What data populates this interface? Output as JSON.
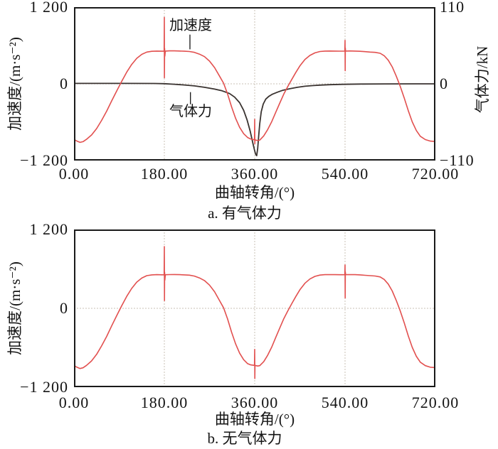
{
  "figure": {
    "colors": {
      "red": "#e2504f",
      "dark": "#3a3330",
      "grid": "#c9c2b6",
      "axis": "#1a1a1a",
      "text": "#141414",
      "background": "#ffffff"
    }
  },
  "chart_data": [
    {
      "id": "with-gas-force",
      "type": "line",
      "caption": "a. 有气体力",
      "xlabel": "曲轴转角/(°)",
      "ylabel_left": "加速度/(m·s⁻²)",
      "ylabel_right": "气体力/kN",
      "xlim": [
        0,
        720
      ],
      "xticks": [
        "0.00",
        "180.00",
        "360.00",
        "540.00",
        "720.00"
      ],
      "xtick_values": [
        0,
        180,
        360,
        540,
        720
      ],
      "ylim_left": [
        -1200,
        1200
      ],
      "yticks_left": [
        "1 200",
        "0",
        "−1 200"
      ],
      "ytick_values_left": [
        1200,
        0,
        -1200
      ],
      "ylim_right": [
        -110,
        110
      ],
      "yticks_right": [
        "110",
        "0",
        "−110"
      ],
      "ytick_values_right": [
        110,
        0,
        -110
      ],
      "grid_x": [
        180,
        360,
        540
      ],
      "grid_y": [
        0
      ],
      "annotations": [
        {
          "key": "acceleration-label",
          "label": "加速度",
          "leader": [
            [
              231,
              770
            ],
            [
              231,
              540
            ]
          ]
        },
        {
          "key": "gas-force-label",
          "label": "气体力",
          "leader": [
            [
              232,
              -130
            ],
            [
              232,
              -320
            ]
          ]
        }
      ],
      "series": [
        {
          "key": "gas-force",
          "name": "气体力",
          "axis": "right",
          "unit": "kN",
          "color": "dark",
          "width": 1.8,
          "points": [
            [
              0,
              0.6
            ],
            [
              100,
              0.6
            ],
            [
              160,
              0.5
            ],
            [
              180,
              0.2
            ],
            [
              200,
              -0.6
            ],
            [
              220,
              -1.6
            ],
            [
              240,
              -3
            ],
            [
              260,
              -5
            ],
            [
              280,
              -7.5
            ],
            [
              295,
              -10
            ],
            [
              310,
              -14
            ],
            [
              320,
              -19
            ],
            [
              330,
              -27
            ],
            [
              338,
              -38
            ],
            [
              345,
              -52
            ],
            [
              351,
              -68
            ],
            [
              356,
              -84
            ],
            [
              360,
              -96
            ],
            [
              362,
              -101
            ],
            [
              364,
              -103
            ],
            [
              366,
              -93
            ],
            [
              368,
              -75
            ],
            [
              370,
              -57
            ],
            [
              373,
              -40
            ],
            [
              377,
              -29
            ],
            [
              382,
              -22
            ],
            [
              388,
              -18
            ],
            [
              395,
              -15
            ],
            [
              405,
              -12
            ],
            [
              415,
              -9.5
            ],
            [
              430,
              -7
            ],
            [
              445,
              -5
            ],
            [
              460,
              -3.5
            ],
            [
              475,
              -2.5
            ],
            [
              490,
              -1.8
            ],
            [
              510,
              -1.2
            ],
            [
              535,
              -0.7
            ],
            [
              570,
              -0.3
            ],
            [
              620,
              -0.1
            ],
            [
              680,
              0
            ],
            [
              720,
              0
            ]
          ]
        },
        {
          "key": "acceleration",
          "name": "加速度",
          "axis": "left",
          "unit": "m·s⁻²",
          "color": "red",
          "width": 1.6,
          "points": [
            [
              0,
              -870
            ],
            [
              6,
              -896
            ],
            [
              12,
              -916
            ],
            [
              18,
              -905
            ],
            [
              25,
              -868
            ],
            [
              35,
              -800
            ],
            [
              45,
              -700
            ],
            [
              55,
              -572
            ],
            [
              65,
              -428
            ],
            [
              75,
              -268
            ],
            [
              85,
              -112
            ],
            [
              95,
              38
            ],
            [
              105,
              182
            ],
            [
              115,
              303
            ],
            [
              125,
              399
            ],
            [
              135,
              461
            ],
            [
              145,
              497
            ],
            [
              155,
              509
            ],
            [
              165,
              512
            ],
            [
              175,
              510
            ],
            [
              179.6,
              511
            ],
            [
              180,
              1040
            ],
            [
              180.2,
              95
            ],
            [
              180.5,
              552
            ],
            [
              181,
              432
            ],
            [
              182,
              512
            ],
            [
              190,
              515
            ],
            [
              200,
              516
            ],
            [
              210,
              513
            ],
            [
              220,
              510
            ],
            [
              230,
              506
            ],
            [
              240,
              492
            ],
            [
              250,
              465
            ],
            [
              260,
              425
            ],
            [
              270,
              355
            ],
            [
              280,
              255
            ],
            [
              290,
              120
            ],
            [
              298,
              10
            ],
            [
              306,
              -160
            ],
            [
              314,
              -360
            ],
            [
              322,
              -540
            ],
            [
              330,
              -680
            ],
            [
              338,
              -780
            ],
            [
              346,
              -840
            ],
            [
              352,
              -862
            ],
            [
              359.6,
              -875
            ],
            [
              360,
              -555
            ],
            [
              360.3,
              -938
            ],
            [
              360.6,
              -875
            ],
            [
              366,
              -888
            ],
            [
              370,
              -880
            ],
            [
              378,
              -815
            ],
            [
              386,
              -715
            ],
            [
              394,
              -590
            ],
            [
              402,
              -445
            ],
            [
              410,
              -300
            ],
            [
              418,
              -160
            ],
            [
              426,
              -40
            ],
            [
              434,
              70
            ],
            [
              442,
              180
            ],
            [
              450,
              280
            ],
            [
              460,
              380
            ],
            [
              470,
              445
            ],
            [
              480,
              485
            ],
            [
              490,
              505
            ],
            [
              500,
              512
            ],
            [
              510,
              513
            ],
            [
              520,
              512
            ],
            [
              530,
              511
            ],
            [
              539.6,
              512
            ],
            [
              540,
              680
            ],
            [
              540.3,
              205
            ],
            [
              540.6,
              558
            ],
            [
              541,
              512
            ],
            [
              550,
              514
            ],
            [
              560,
              512
            ],
            [
              570,
              509
            ],
            [
              580,
              503
            ],
            [
              590,
              497
            ],
            [
              600,
              492
            ],
            [
              610,
              478
            ],
            [
              618,
              440
            ],
            [
              626,
              370
            ],
            [
              634,
              265
            ],
            [
              642,
              120
            ],
            [
              650,
              -40
            ],
            [
              658,
              -225
            ],
            [
              666,
              -420
            ],
            [
              674,
              -595
            ],
            [
              682,
              -730
            ],
            [
              690,
              -820
            ],
            [
              700,
              -872
            ],
            [
              710,
              -896
            ],
            [
              720,
              -902
            ]
          ]
        }
      ]
    },
    {
      "id": "without-gas-force",
      "type": "line",
      "caption": "b. 无气体力",
      "xlabel": "曲轴转角/(°)",
      "ylabel_left": "加速度/(m·s⁻²)",
      "xlim": [
        0,
        720
      ],
      "xticks": [
        "0.00",
        "180.00",
        "360.00",
        "540.00",
        "720.00"
      ],
      "xtick_values": [
        0,
        180,
        360,
        540,
        720
      ],
      "ylim_left": [
        -1200,
        1200
      ],
      "yticks_left": [
        "1 200",
        "0",
        "−1 200"
      ],
      "ytick_values_left": [
        1200,
        0,
        -1200
      ],
      "grid_x": [
        180,
        360,
        540
      ],
      "grid_y": [
        0
      ],
      "annotations": [],
      "series": [
        {
          "key": "acceleration",
          "name": "加速度",
          "axis": "left",
          "unit": "m·s⁻²",
          "color": "red",
          "width": 1.6,
          "points": [
            [
              0,
              -870
            ],
            [
              6,
              -896
            ],
            [
              12,
              -916
            ],
            [
              18,
              -905
            ],
            [
              25,
              -868
            ],
            [
              35,
              -800
            ],
            [
              45,
              -700
            ],
            [
              55,
              -572
            ],
            [
              65,
              -428
            ],
            [
              75,
              -268
            ],
            [
              85,
              -112
            ],
            [
              95,
              38
            ],
            [
              105,
              182
            ],
            [
              115,
              303
            ],
            [
              125,
              399
            ],
            [
              135,
              461
            ],
            [
              145,
              497
            ],
            [
              155,
              509
            ],
            [
              165,
              512
            ],
            [
              175,
              510
            ],
            [
              179.6,
              511
            ],
            [
              180,
              940
            ],
            [
              180.3,
              118
            ],
            [
              180.6,
              548
            ],
            [
              181,
              428
            ],
            [
              182,
              511
            ],
            [
              190,
              514
            ],
            [
              200,
              515
            ],
            [
              210,
              512
            ],
            [
              220,
              509
            ],
            [
              230,
              505
            ],
            [
              240,
              491
            ],
            [
              250,
              463
            ],
            [
              260,
              423
            ],
            [
              270,
              353
            ],
            [
              280,
              253
            ],
            [
              290,
              118
            ],
            [
              298,
              8
            ],
            [
              306,
              -162
            ],
            [
              314,
              -362
            ],
            [
              322,
              -542
            ],
            [
              330,
              -682
            ],
            [
              338,
              -782
            ],
            [
              346,
              -842
            ],
            [
              352,
              -860
            ],
            [
              359.6,
              -868
            ],
            [
              360,
              -625
            ],
            [
              360.3,
              -1068
            ],
            [
              360.6,
              -868
            ],
            [
              366,
              -878
            ],
            [
              370,
              -872
            ],
            [
              378,
              -812
            ],
            [
              386,
              -712
            ],
            [
              394,
              -588
            ],
            [
              402,
              -442
            ],
            [
              410,
              -298
            ],
            [
              418,
              -158
            ],
            [
              426,
              -38
            ],
            [
              434,
              72
            ],
            [
              442,
              182
            ],
            [
              450,
              282
            ],
            [
              460,
              382
            ],
            [
              470,
              446
            ],
            [
              480,
              486
            ],
            [
              490,
              506
            ],
            [
              500,
              512
            ],
            [
              510,
              513
            ],
            [
              520,
              512
            ],
            [
              530,
              511
            ],
            [
              539.6,
              512
            ],
            [
              540,
              660
            ],
            [
              540.3,
              158
            ],
            [
              540.6,
              554
            ],
            [
              541,
              512
            ],
            [
              550,
              514
            ],
            [
              560,
              512
            ],
            [
              570,
              509
            ],
            [
              580,
              503
            ],
            [
              590,
              497
            ],
            [
              600,
              492
            ],
            [
              610,
              478
            ],
            [
              618,
              440
            ],
            [
              626,
              370
            ],
            [
              634,
              265
            ],
            [
              642,
              120
            ],
            [
              650,
              -40
            ],
            [
              658,
              -225
            ],
            [
              666,
              -420
            ],
            [
              674,
              -595
            ],
            [
              682,
              -730
            ],
            [
              690,
              -820
            ],
            [
              700,
              -872
            ],
            [
              710,
              -896
            ],
            [
              720,
              -902
            ]
          ]
        }
      ]
    }
  ]
}
